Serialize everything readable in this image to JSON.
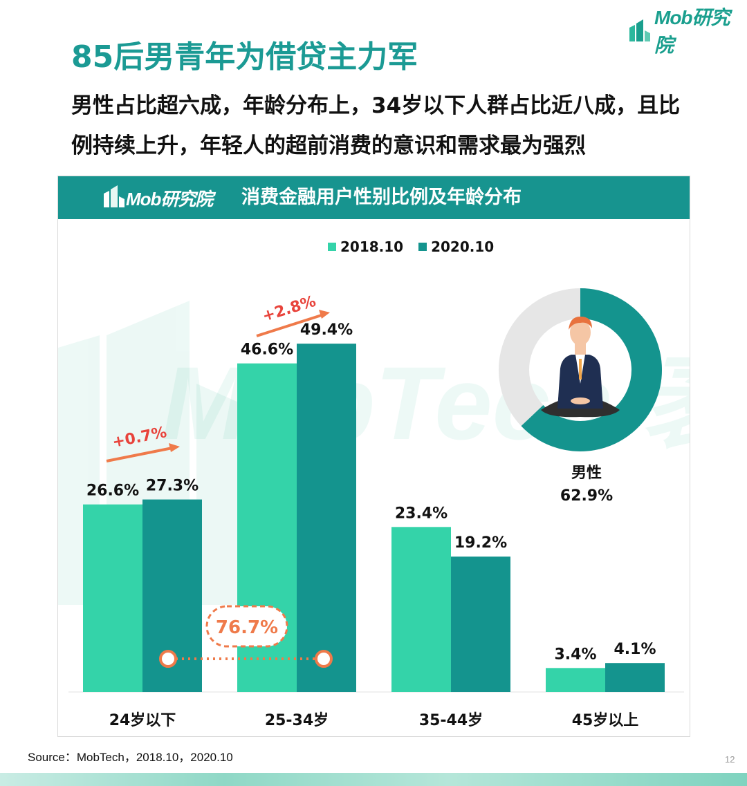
{
  "brand": {
    "name": "Mob研究院"
  },
  "page": {
    "title": "85后男青年为借贷主力军",
    "subtitle": "男性占比超六成，年龄分布上，34岁以下人群占比近八成，且比例持续上升，年轻人的超前消费的意识和需求最为强烈",
    "source": "Source：MobTech，2018.10，2020.10",
    "page_number": "12"
  },
  "panel": {
    "title": "消费金融用户性别比例及年龄分布"
  },
  "watermark": {
    "text": "MobTech 袤博"
  },
  "colors": {
    "series_2018": "#34d3a9",
    "series_2020": "#14948e",
    "arrow": "#ef7a4a",
    "delta": "#e8433b",
    "donut_rest": "#e6e6e6"
  },
  "chart_data": [
    {
      "type": "bar",
      "categories": [
        "24岁以下",
        "25-34岁",
        "35-44岁",
        "45岁以上"
      ],
      "series": [
        {
          "name": "2018.10",
          "values": [
            26.6,
            46.6,
            23.4,
            3.4
          ],
          "labels": [
            "26.6%",
            "46.6%",
            "23.4%",
            "3.4%"
          ]
        },
        {
          "name": "2020.10",
          "values": [
            27.3,
            49.4,
            19.2,
            4.1
          ],
          "labels": [
            "27.3%",
            "49.4%",
            "19.2%",
            "4.1%"
          ]
        }
      ],
      "ylim": [
        0,
        55
      ],
      "legend": "top-center",
      "annotations": [
        {
          "text": "+0.7%",
          "category": "24岁以下",
          "type": "increase-arrow"
        },
        {
          "text": "+2.8%",
          "category": "25-34岁",
          "type": "increase-arrow"
        },
        {
          "text": "76.7%",
          "spans": [
            "24岁以下",
            "25-34岁"
          ],
          "series": "2020.10",
          "type": "bracket-total"
        }
      ]
    },
    {
      "type": "pie",
      "style": "donut",
      "slices": [
        {
          "name": "男性",
          "value": 62.9,
          "label": "62.9%"
        }
      ],
      "remainder_color": "#e6e6e6"
    }
  ]
}
